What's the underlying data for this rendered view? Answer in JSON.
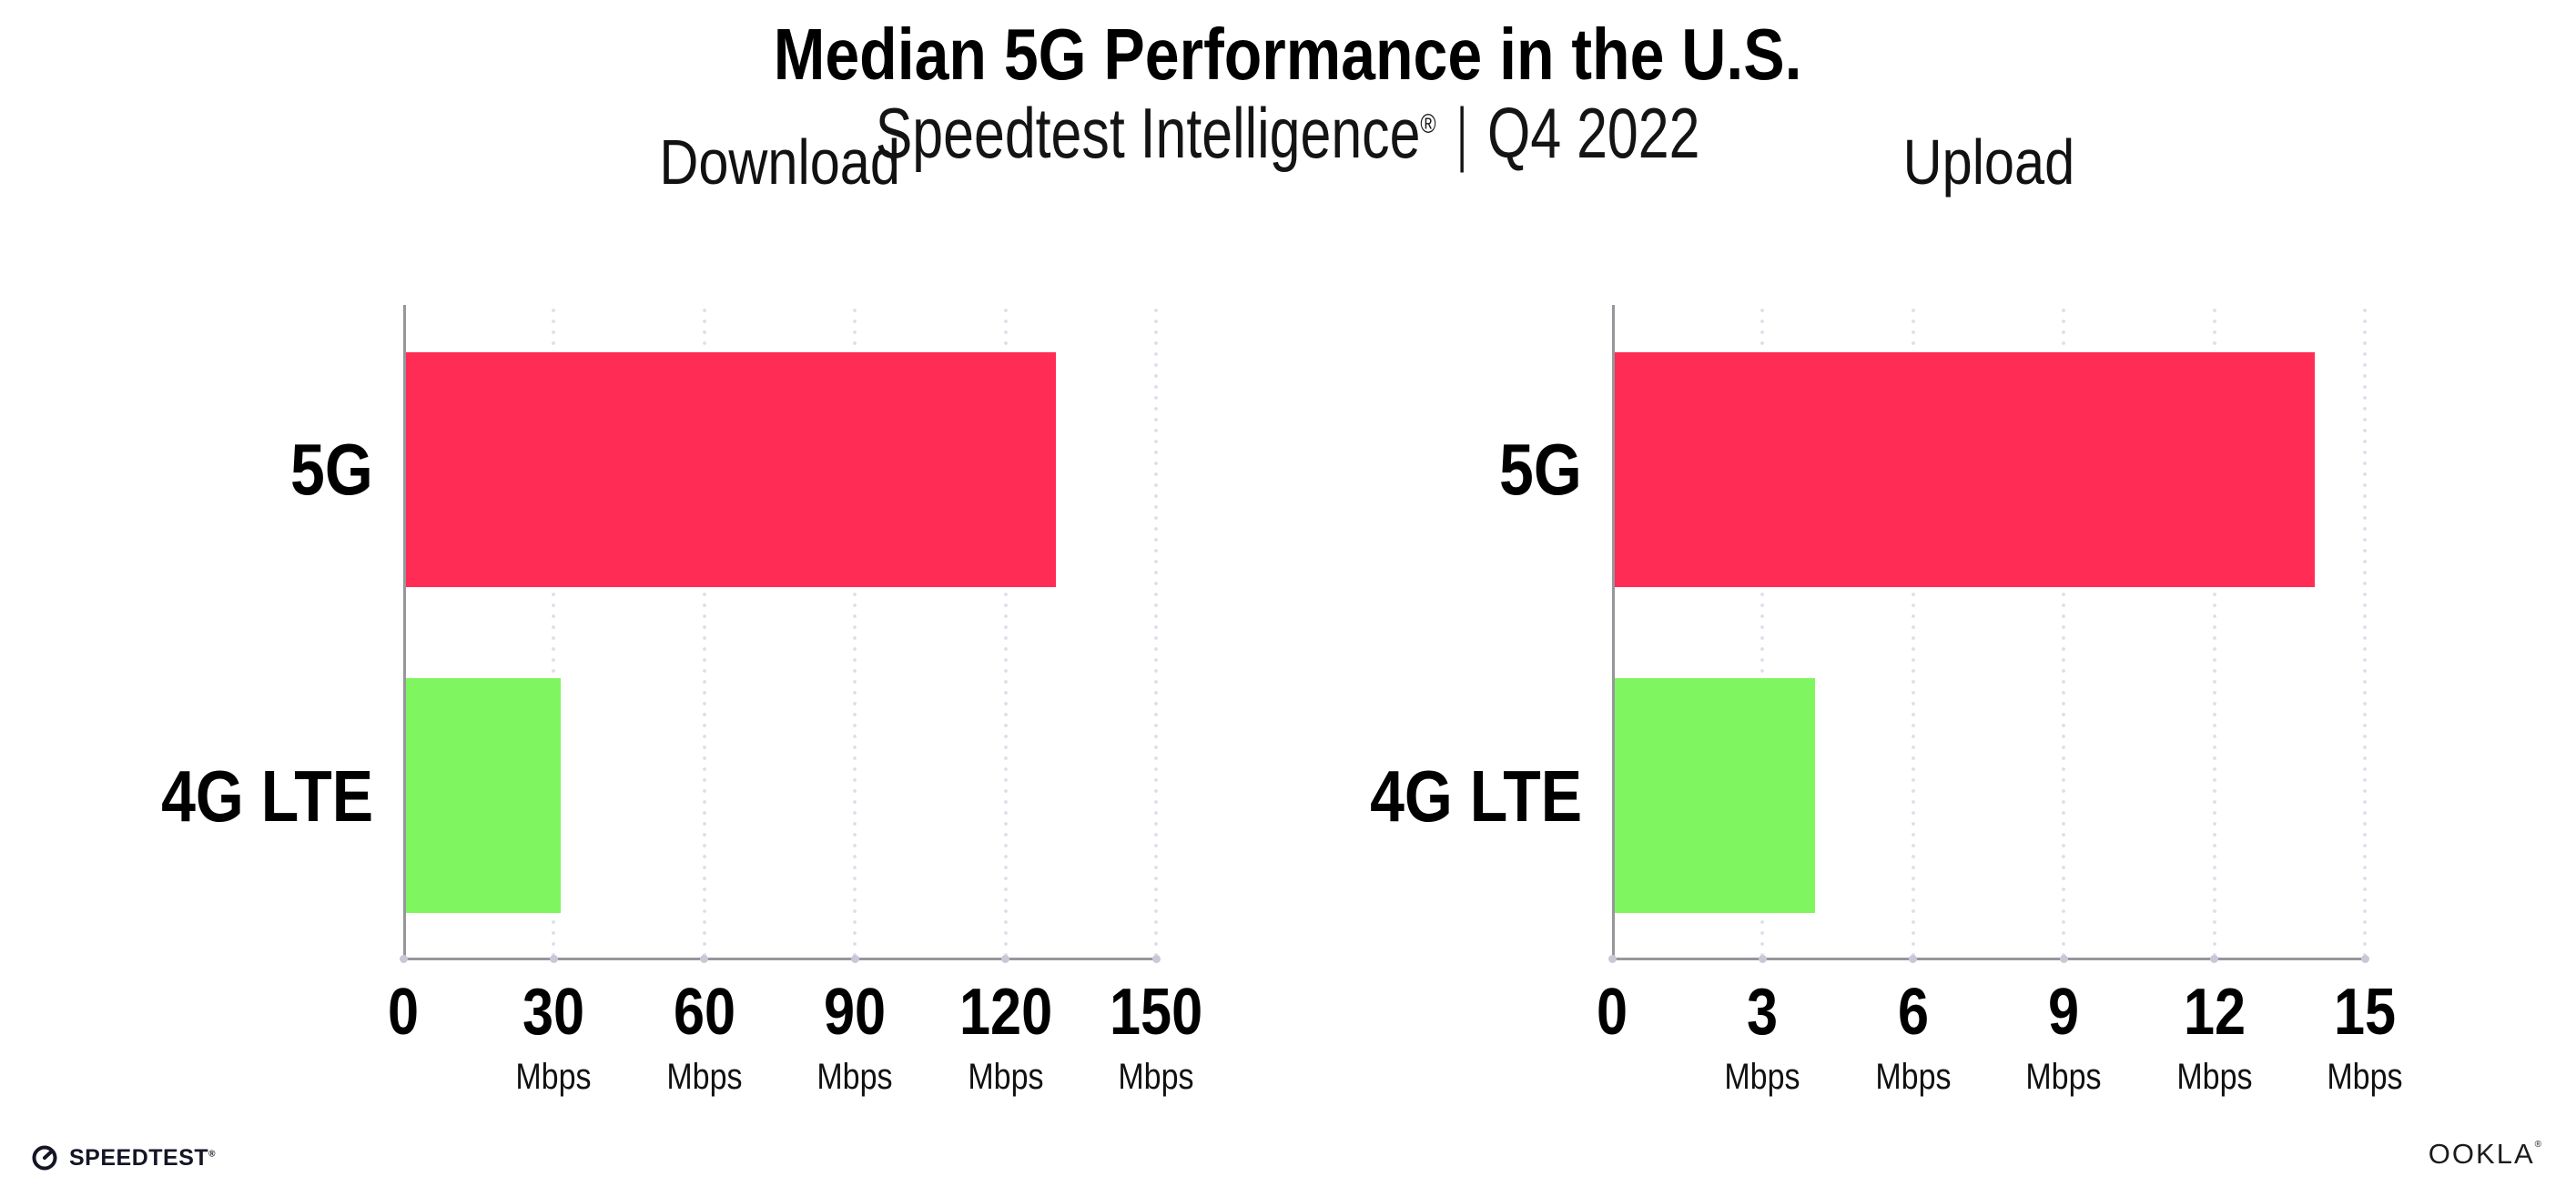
{
  "header": {
    "title": "Median 5G Performance in the U.S.",
    "subtitle_brand": "Speedtest Intelligence",
    "subtitle_reg_mark": "®",
    "subtitle_divider": "|",
    "subtitle_period": "Q4 2022"
  },
  "chart_data": [
    {
      "type": "bar",
      "orientation": "horizontal",
      "title": "Download",
      "categories": [
        "5G",
        "4G LTE"
      ],
      "values": [
        130,
        31
      ],
      "value_unit": "Mbps",
      "xlim": [
        0,
        150
      ],
      "xticks": [
        0,
        30,
        60,
        90,
        120,
        150
      ],
      "tick_unit_label": "Mbps",
      "series_colors": [
        "#FF2D55",
        "#7FF65F"
      ],
      "grid": "vertical-dotted",
      "legend": "none"
    },
    {
      "type": "bar",
      "orientation": "horizontal",
      "title": "Upload",
      "categories": [
        "5G",
        "4G LTE"
      ],
      "values": [
        14,
        4
      ],
      "value_unit": "Mbps",
      "xlim": [
        0,
        15
      ],
      "xticks": [
        0,
        3,
        6,
        9,
        12,
        15
      ],
      "tick_unit_label": "Mbps",
      "series_colors": [
        "#FF2D55",
        "#7FF65F"
      ],
      "grid": "vertical-dotted",
      "legend": "none"
    }
  ],
  "colors": {
    "bar_5g": "#FF2D55",
    "bar_4g_lte": "#7FF65F",
    "axis_line": "#96969B",
    "grid_dot": "#DCDEE9",
    "axis_tick_dot": "#C7C9D6",
    "text": "#000000",
    "logo": "#141526"
  },
  "footer": {
    "speedtest_label": "SPEEDTEST",
    "speedtest_mark": "®",
    "ookla_label": "OOKLA",
    "ookla_mark": "®"
  }
}
